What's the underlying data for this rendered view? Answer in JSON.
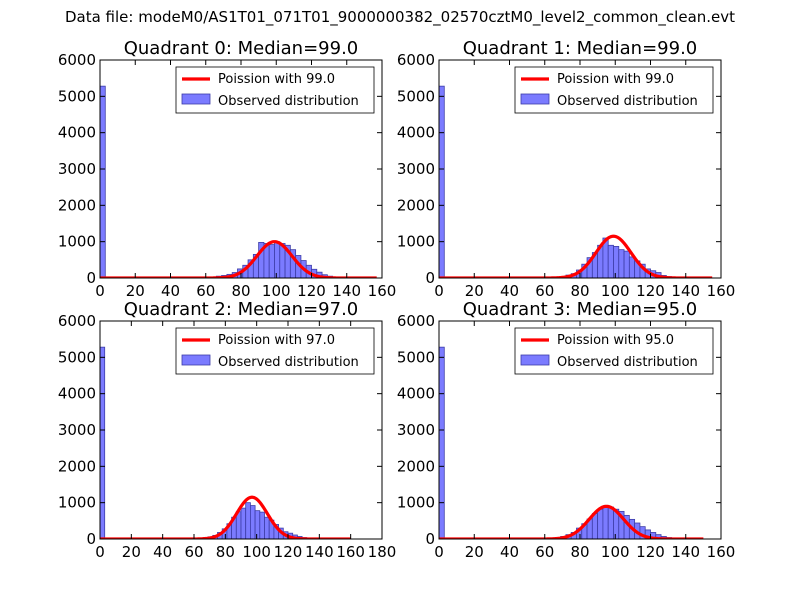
{
  "suptitle": "Data file: modeM0/AS1T01_071T01_9000000382_02570cztM0_level2_common_clean.evt",
  "colors": {
    "bars": "#7b7bff",
    "bar_edge": "#3d3da8",
    "fit_line": "#ff0000"
  },
  "chart_data": [
    {
      "type": "bar",
      "title": "Quadrant 0: Median=99.0",
      "xlim": [
        0,
        160
      ],
      "ylim": [
        0,
        6000
      ],
      "xticks": [
        0,
        20,
        40,
        60,
        80,
        100,
        120,
        140,
        160
      ],
      "yticks": [
        0,
        1000,
        2000,
        3000,
        4000,
        5000,
        6000
      ],
      "legend": [
        "Poission with 99.0",
        "Observed distribution"
      ],
      "legend_position": "top-right",
      "grid": false,
      "bin_width": 3,
      "bars": [
        [
          0,
          5280
        ],
        [
          3,
          20
        ],
        [
          6,
          20
        ],
        [
          9,
          20
        ],
        [
          12,
          20
        ],
        [
          15,
          20
        ],
        [
          18,
          20
        ],
        [
          21,
          20
        ],
        [
          24,
          20
        ],
        [
          27,
          20
        ],
        [
          30,
          20
        ],
        [
          33,
          20
        ],
        [
          36,
          20
        ],
        [
          39,
          20
        ],
        [
          42,
          20
        ],
        [
          45,
          20
        ],
        [
          48,
          20
        ],
        [
          51,
          20
        ],
        [
          54,
          20
        ],
        [
          57,
          20
        ],
        [
          60,
          20
        ],
        [
          63,
          20
        ],
        [
          66,
          50
        ],
        [
          69,
          70
        ],
        [
          72,
          100
        ],
        [
          75,
          150
        ],
        [
          78,
          250
        ],
        [
          81,
          350
        ],
        [
          84,
          500
        ],
        [
          87,
          650
        ],
        [
          90,
          980
        ],
        [
          93,
          950
        ],
        [
          96,
          920
        ],
        [
          99,
          1000
        ],
        [
          102,
          950
        ],
        [
          105,
          900
        ],
        [
          108,
          780
        ],
        [
          111,
          620
        ],
        [
          114,
          480
        ],
        [
          117,
          350
        ],
        [
          120,
          240
        ],
        [
          123,
          160
        ],
        [
          126,
          90
        ],
        [
          129,
          50
        ],
        [
          132,
          25
        ],
        [
          135,
          10
        ]
      ],
      "fit": {
        "mean": 99.0,
        "peak": 1000,
        "x_range": [
          0,
          157
        ]
      }
    },
    {
      "type": "bar",
      "title": "Quadrant 1: Median=99.0",
      "xlim": [
        0,
        160
      ],
      "ylim": [
        0,
        6000
      ],
      "xticks": [
        0,
        20,
        40,
        60,
        80,
        100,
        120,
        140,
        160
      ],
      "yticks": [
        0,
        1000,
        2000,
        3000,
        4000,
        5000,
        6000
      ],
      "legend": [
        "Poission with 99.0",
        "Observed distribution"
      ],
      "legend_position": "top-right",
      "grid": false,
      "bin_width": 3,
      "bars": [
        [
          0,
          5280
        ],
        [
          3,
          20
        ],
        [
          6,
          20
        ],
        [
          9,
          20
        ],
        [
          12,
          20
        ],
        [
          15,
          20
        ],
        [
          18,
          20
        ],
        [
          21,
          20
        ],
        [
          24,
          20
        ],
        [
          27,
          20
        ],
        [
          30,
          20
        ],
        [
          33,
          20
        ],
        [
          36,
          20
        ],
        [
          39,
          20
        ],
        [
          42,
          20
        ],
        [
          45,
          20
        ],
        [
          48,
          20
        ],
        [
          51,
          20
        ],
        [
          54,
          20
        ],
        [
          57,
          20
        ],
        [
          60,
          20
        ],
        [
          63,
          20
        ],
        [
          66,
          30
        ],
        [
          69,
          40
        ],
        [
          72,
          80
        ],
        [
          75,
          120
        ],
        [
          78,
          220
        ],
        [
          81,
          380
        ],
        [
          84,
          560
        ],
        [
          87,
          700
        ],
        [
          90,
          900
        ],
        [
          93,
          1100
        ],
        [
          96,
          900
        ],
        [
          99,
          870
        ],
        [
          102,
          780
        ],
        [
          105,
          740
        ],
        [
          108,
          580
        ],
        [
          111,
          470
        ],
        [
          114,
          380
        ],
        [
          117,
          250
        ],
        [
          120,
          200
        ],
        [
          123,
          150
        ],
        [
          126,
          70
        ],
        [
          129,
          40
        ],
        [
          132,
          20
        ]
      ],
      "fit": {
        "mean": 99.0,
        "peak": 1150,
        "x_range": [
          0,
          155
        ]
      }
    },
    {
      "type": "bar",
      "title": "Quadrant 2: Median=97.0",
      "xlim": [
        0,
        180
      ],
      "ylim": [
        0,
        6000
      ],
      "xticks": [
        0,
        20,
        40,
        60,
        80,
        100,
        120,
        140,
        160,
        180
      ],
      "yticks": [
        0,
        1000,
        2000,
        3000,
        4000,
        5000,
        6000
      ],
      "legend": [
        "Poission with 97.0",
        "Observed distribution"
      ],
      "legend_position": "top-right",
      "grid": false,
      "bin_width": 3,
      "bars": [
        [
          0,
          5280
        ],
        [
          3,
          20
        ],
        [
          6,
          20
        ],
        [
          9,
          20
        ],
        [
          12,
          20
        ],
        [
          15,
          20
        ],
        [
          18,
          20
        ],
        [
          21,
          20
        ],
        [
          24,
          20
        ],
        [
          27,
          20
        ],
        [
          30,
          20
        ],
        [
          33,
          20
        ],
        [
          36,
          20
        ],
        [
          39,
          20
        ],
        [
          42,
          20
        ],
        [
          45,
          20
        ],
        [
          48,
          20
        ],
        [
          51,
          20
        ],
        [
          54,
          20
        ],
        [
          57,
          20
        ],
        [
          60,
          20
        ],
        [
          63,
          20
        ],
        [
          66,
          40
        ],
        [
          69,
          60
        ],
        [
          72,
          100
        ],
        [
          75,
          180
        ],
        [
          78,
          280
        ],
        [
          81,
          420
        ],
        [
          84,
          600
        ],
        [
          87,
          750
        ],
        [
          90,
          850
        ],
        [
          93,
          1000
        ],
        [
          96,
          920
        ],
        [
          99,
          780
        ],
        [
          102,
          740
        ],
        [
          105,
          600
        ],
        [
          108,
          520
        ],
        [
          111,
          400
        ],
        [
          114,
          300
        ],
        [
          117,
          200
        ],
        [
          120,
          160
        ],
        [
          123,
          110
        ],
        [
          126,
          70
        ],
        [
          129,
          40
        ],
        [
          132,
          20
        ]
      ],
      "fit": {
        "mean": 97.0,
        "peak": 1150,
        "x_range": [
          0,
          160
        ]
      }
    },
    {
      "type": "bar",
      "title": "Quadrant 3: Median=95.0",
      "xlim": [
        0,
        160
      ],
      "ylim": [
        0,
        6000
      ],
      "xticks": [
        0,
        20,
        40,
        60,
        80,
        100,
        120,
        140,
        160
      ],
      "yticks": [
        0,
        1000,
        2000,
        3000,
        4000,
        5000,
        6000
      ],
      "legend": [
        "Poission with 95.0",
        "Observed distribution"
      ],
      "legend_position": "top-right",
      "grid": false,
      "bin_width": 3,
      "bars": [
        [
          0,
          5280
        ],
        [
          3,
          20
        ],
        [
          6,
          20
        ],
        [
          9,
          20
        ],
        [
          12,
          20
        ],
        [
          15,
          20
        ],
        [
          18,
          20
        ],
        [
          21,
          20
        ],
        [
          24,
          20
        ],
        [
          27,
          20
        ],
        [
          30,
          20
        ],
        [
          33,
          20
        ],
        [
          36,
          20
        ],
        [
          39,
          20
        ],
        [
          42,
          20
        ],
        [
          45,
          20
        ],
        [
          48,
          20
        ],
        [
          51,
          20
        ],
        [
          54,
          20
        ],
        [
          57,
          20
        ],
        [
          60,
          20
        ],
        [
          63,
          20
        ],
        [
          66,
          40
        ],
        [
          69,
          70
        ],
        [
          72,
          120
        ],
        [
          75,
          180
        ],
        [
          78,
          300
        ],
        [
          81,
          420
        ],
        [
          84,
          550
        ],
        [
          87,
          700
        ],
        [
          90,
          820
        ],
        [
          93,
          900
        ],
        [
          96,
          880
        ],
        [
          99,
          820
        ],
        [
          102,
          760
        ],
        [
          105,
          650
        ],
        [
          108,
          540
        ],
        [
          111,
          440
        ],
        [
          114,
          340
        ],
        [
          117,
          250
        ],
        [
          120,
          180
        ],
        [
          123,
          120
        ],
        [
          126,
          70
        ],
        [
          129,
          40
        ],
        [
          132,
          20
        ]
      ],
      "fit": {
        "mean": 95.0,
        "peak": 900,
        "x_range": [
          0,
          150
        ]
      }
    }
  ]
}
